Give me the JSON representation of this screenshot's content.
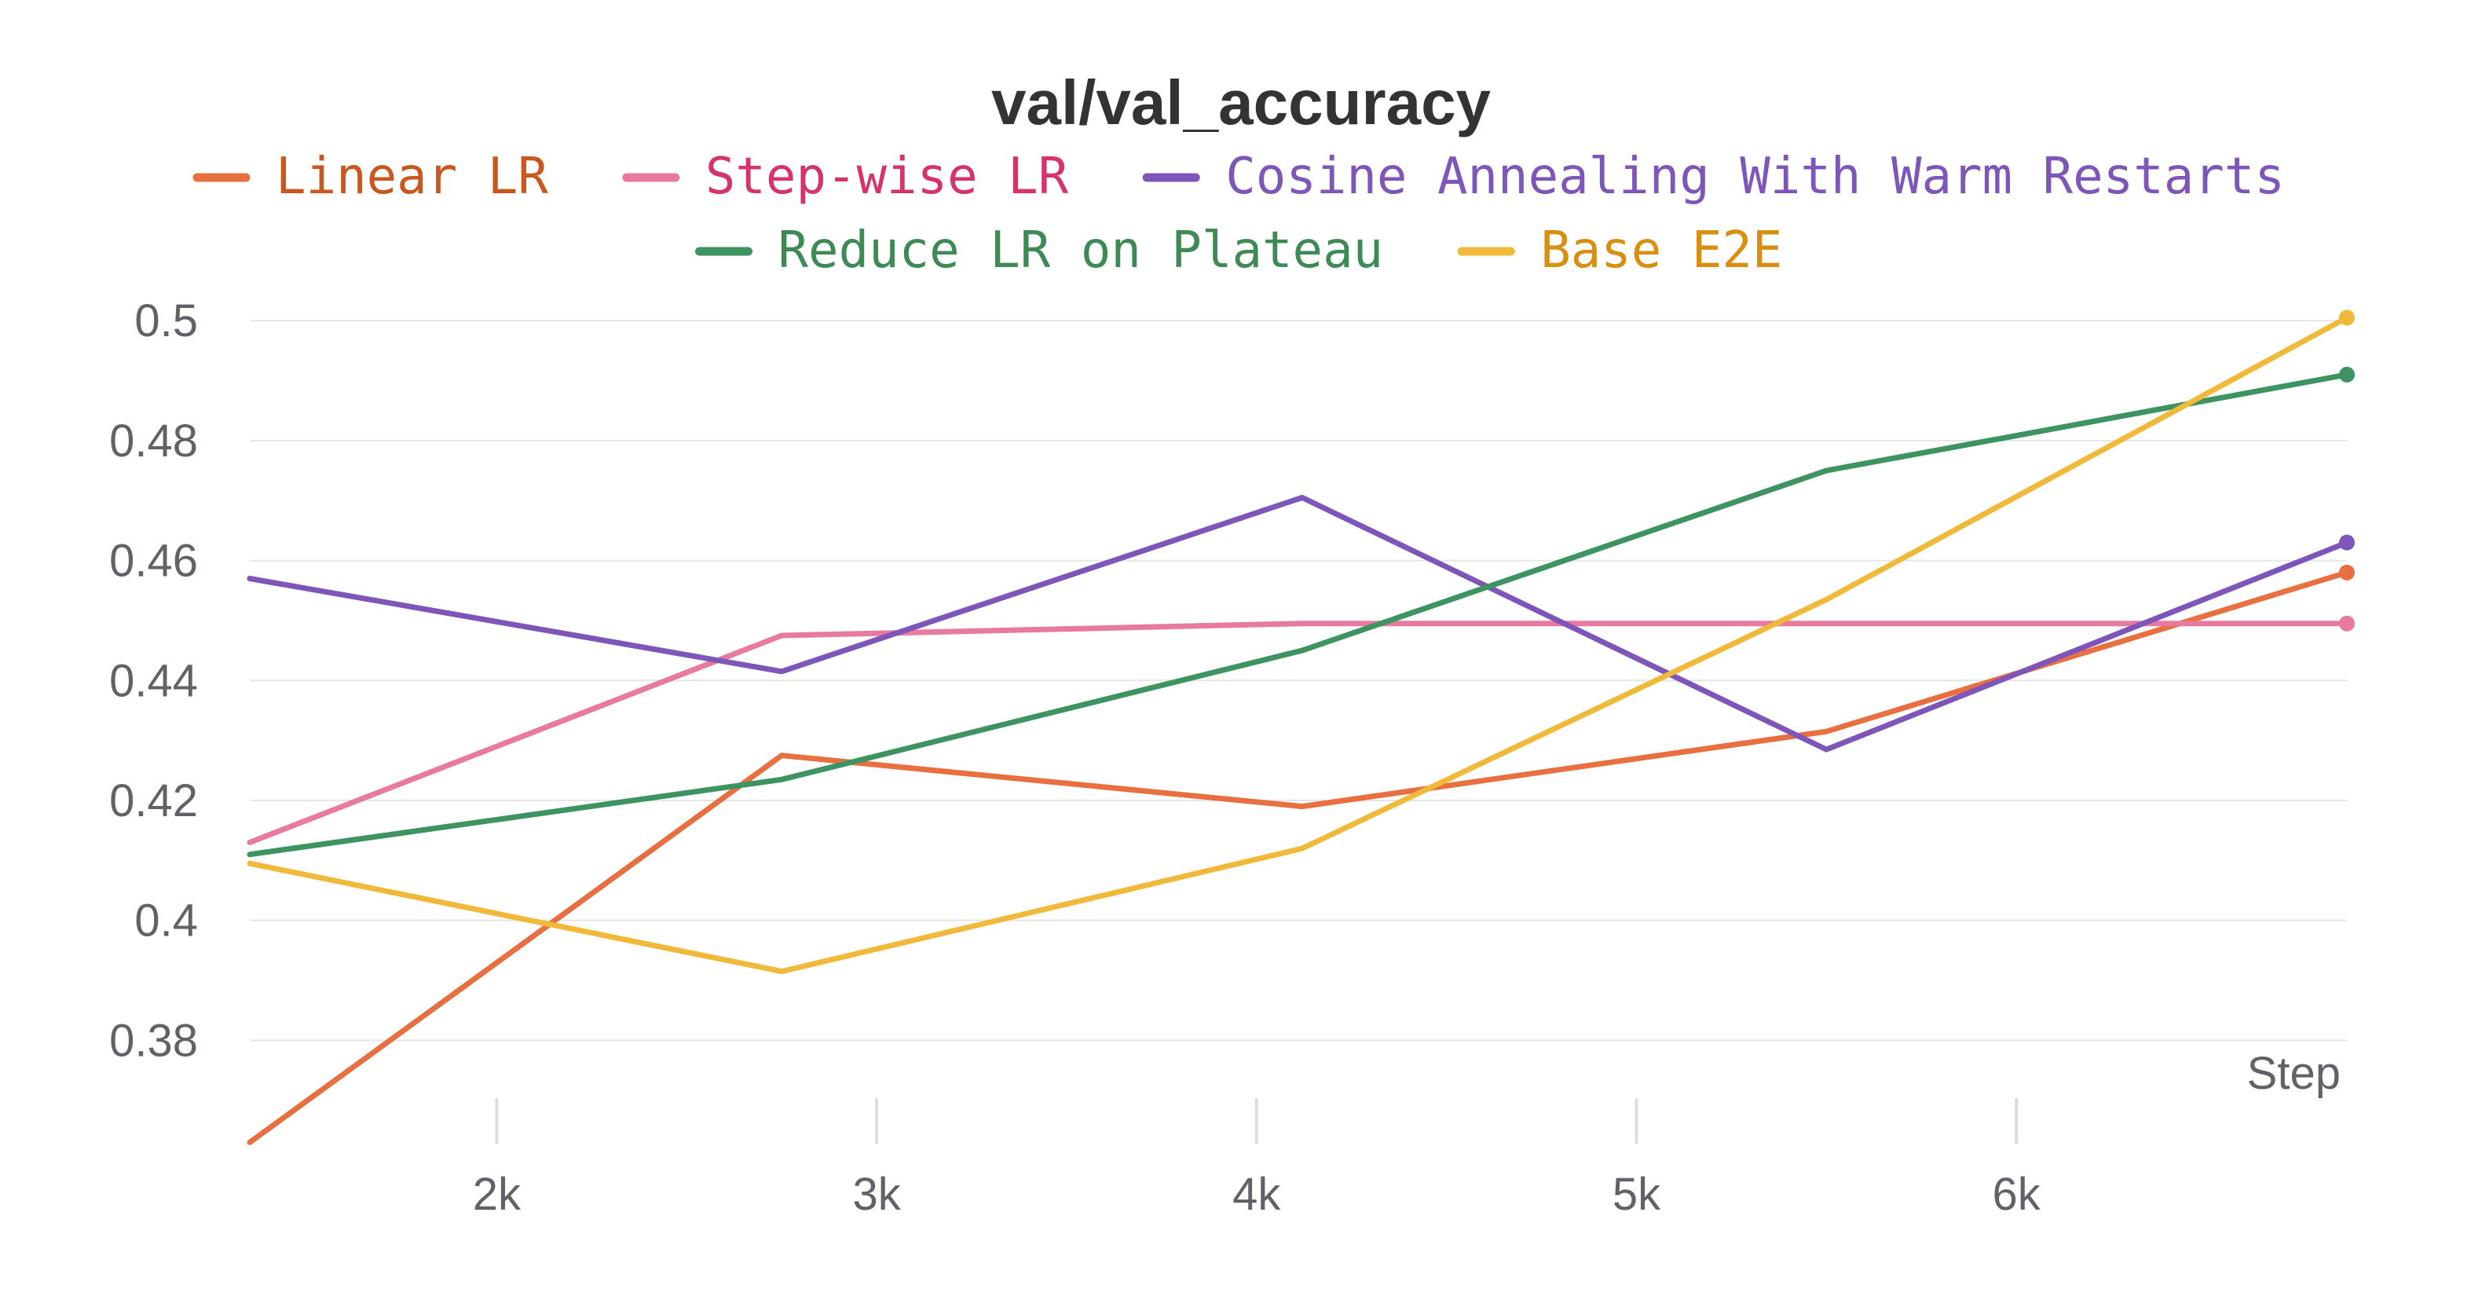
{
  "chart_data": {
    "type": "line",
    "title": "val/val_accuracy",
    "xlabel": "Step",
    "ylabel": "",
    "x": [
      1350,
      2750,
      4120,
      5500,
      6870
    ],
    "xlim": [
      1350,
      6870
    ],
    "ylim": [
      0.3625,
      0.505
    ],
    "x_ticks": [
      2000,
      3000,
      4000,
      5000,
      6000
    ],
    "x_tick_labels": [
      "2k",
      "3k",
      "4k",
      "5k",
      "6k"
    ],
    "y_ticks": [
      0.38,
      0.4,
      0.42,
      0.44,
      0.46,
      0.48,
      0.5
    ],
    "y_tick_labels": [
      "0.38",
      "0.4",
      "0.42",
      "0.44",
      "0.46",
      "0.48",
      "0.5"
    ],
    "grid": true,
    "legend_position": "top-center",
    "series": [
      {
        "name": "Linear LR",
        "color": "#e87040",
        "legend_text_color": "#c8581e",
        "values": [
          0.363,
          0.4275,
          0.419,
          0.4315,
          0.458
        ]
      },
      {
        "name": "Step-wise LR",
        "color": "#e8799f",
        "legend_text_color": "#d6336c",
        "values": [
          0.413,
          0.4475,
          0.4495,
          0.4495,
          0.4495
        ]
      },
      {
        "name": "Cosine Annealing With Warm Restarts",
        "color": "#7e55b8",
        "legend_text_color": "#7e55b8",
        "values": [
          0.457,
          0.4415,
          0.4705,
          0.4285,
          0.463
        ]
      },
      {
        "name": "Reduce LR on Plateau",
        "color": "#3d9460",
        "legend_text_color": "#3d8a55",
        "values": [
          0.411,
          0.4235,
          0.445,
          0.475,
          0.491
        ]
      },
      {
        "name": "Base E2E",
        "color": "#f0b93a",
        "legend_text_color": "#d88e10",
        "values": [
          0.4095,
          0.3915,
          0.412,
          0.4535,
          0.5005
        ]
      }
    ]
  }
}
